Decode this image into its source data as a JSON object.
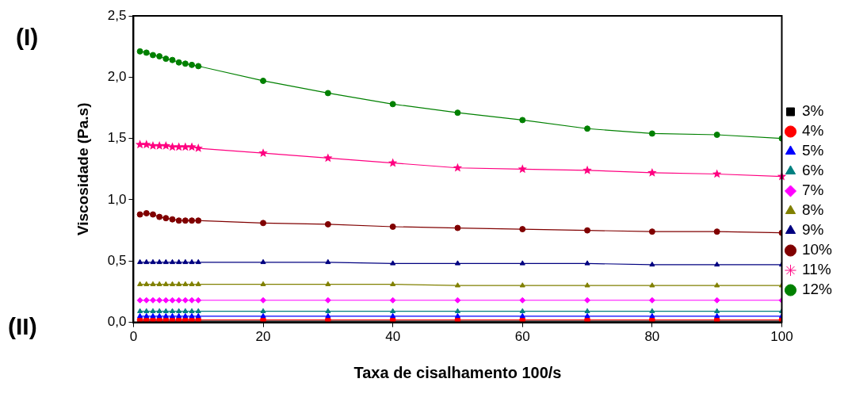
{
  "chart_data": {
    "type": "line",
    "xlabel": "Taxa de cisalhamento 100/s",
    "ylabel": "Viscosidade (Pa.s)",
    "annotations": [
      "(I)",
      "(II)"
    ],
    "x": [
      1,
      2,
      3,
      4,
      5,
      6,
      7,
      8,
      9,
      10,
      20,
      30,
      40,
      50,
      60,
      70,
      80,
      90,
      100
    ],
    "xlim": [
      0,
      100
    ],
    "xticks": [
      0,
      20,
      40,
      60,
      80,
      100
    ],
    "ylim": [
      0,
      2.5
    ],
    "yticks": [
      {
        "value": 0,
        "label": "0,0"
      },
      {
        "value": 0.5,
        "label": "0,5"
      },
      {
        "value": 1,
        "label": "1,0"
      },
      {
        "value": 1.5,
        "label": "1,5"
      },
      {
        "value": 2,
        "label": "2,0"
      },
      {
        "value": 2.5,
        "label": "2,5"
      }
    ],
    "grid": false,
    "legend": "right",
    "line_style": "solid",
    "series": [
      {
        "name": "3%",
        "color": "#000000",
        "marker": "square",
        "values": [
          0.01,
          0.01,
          0.01,
          0.01,
          0.01,
          0.01,
          0.01,
          0.01,
          0.01,
          0.01,
          0.01,
          0.01,
          0.01,
          0.01,
          0.01,
          0.01,
          0.01,
          0.01,
          0.01
        ]
      },
      {
        "name": "4%",
        "color": "#ff0000",
        "marker": "circle",
        "values": [
          0.02,
          0.02,
          0.02,
          0.02,
          0.02,
          0.02,
          0.02,
          0.02,
          0.02,
          0.02,
          0.02,
          0.02,
          0.02,
          0.02,
          0.02,
          0.02,
          0.02,
          0.02,
          0.02
        ]
      },
      {
        "name": "5%",
        "color": "#0000ff",
        "marker": "triangle",
        "values": [
          0.05,
          0.05,
          0.05,
          0.05,
          0.05,
          0.05,
          0.05,
          0.05,
          0.05,
          0.05,
          0.05,
          0.05,
          0.05,
          0.05,
          0.05,
          0.05,
          0.05,
          0.05,
          0.05
        ]
      },
      {
        "name": "6%",
        "color": "#008080",
        "marker": "triangle",
        "values": [
          0.09,
          0.09,
          0.09,
          0.09,
          0.09,
          0.09,
          0.09,
          0.09,
          0.09,
          0.09,
          0.09,
          0.09,
          0.09,
          0.09,
          0.09,
          0.09,
          0.09,
          0.09,
          0.09
        ]
      },
      {
        "name": "7%",
        "color": "#ff00ff",
        "marker": "diamond",
        "values": [
          0.18,
          0.18,
          0.18,
          0.18,
          0.18,
          0.18,
          0.18,
          0.18,
          0.18,
          0.18,
          0.18,
          0.18,
          0.18,
          0.18,
          0.18,
          0.18,
          0.18,
          0.18,
          0.18
        ]
      },
      {
        "name": "8%",
        "color": "#808000",
        "marker": "triangle",
        "values": [
          0.31,
          0.31,
          0.31,
          0.31,
          0.31,
          0.31,
          0.31,
          0.31,
          0.31,
          0.31,
          0.31,
          0.31,
          0.31,
          0.3,
          0.3,
          0.3,
          0.3,
          0.3,
          0.3
        ]
      },
      {
        "name": "9%",
        "color": "#000080",
        "marker": "triangle",
        "values": [
          0.49,
          0.49,
          0.49,
          0.49,
          0.49,
          0.49,
          0.49,
          0.49,
          0.49,
          0.49,
          0.49,
          0.49,
          0.48,
          0.48,
          0.48,
          0.48,
          0.47,
          0.47,
          0.47
        ]
      },
      {
        "name": "10%",
        "color": "#800000",
        "marker": "circle",
        "values": [
          0.88,
          0.89,
          0.88,
          0.86,
          0.85,
          0.84,
          0.83,
          0.83,
          0.83,
          0.83,
          0.81,
          0.8,
          0.78,
          0.77,
          0.76,
          0.75,
          0.74,
          0.74,
          0.73
        ]
      },
      {
        "name": "11%",
        "color": "#ff0080",
        "marker": "star",
        "values": [
          1.45,
          1.45,
          1.44,
          1.44,
          1.44,
          1.43,
          1.43,
          1.43,
          1.43,
          1.42,
          1.38,
          1.34,
          1.3,
          1.26,
          1.25,
          1.24,
          1.22,
          1.21,
          1.19
        ]
      },
      {
        "name": "12%",
        "color": "#008000",
        "marker": "circle",
        "values": [
          2.21,
          2.2,
          2.18,
          2.17,
          2.15,
          2.14,
          2.12,
          2.11,
          2.1,
          2.09,
          1.97,
          1.87,
          1.78,
          1.71,
          1.65,
          1.58,
          1.54,
          1.53,
          1.5
        ]
      }
    ]
  }
}
